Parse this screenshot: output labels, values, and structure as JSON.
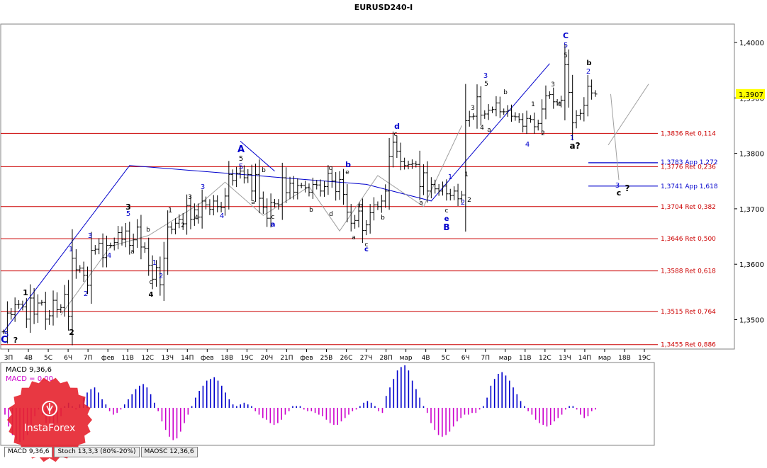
{
  "chart_data": {
    "type": "candlestick",
    "title": "EURUSD240-I",
    "y_range": [
      1.3438,
      1.4045
    ],
    "price_label": "1,3907",
    "y_ticks": [
      "1,4000",
      "1,3900",
      "1,3800",
      "1,3700",
      "1,3600",
      "1,3500"
    ],
    "x_ticks": [
      "3П",
      "4В",
      "5С",
      "6Ч",
      "7П",
      "фев",
      "11В",
      "12С",
      "13Ч",
      "14П",
      "фев",
      "18В",
      "19С",
      "20Ч",
      "21П",
      "фев",
      "25В",
      "26С",
      "27Ч",
      "28П",
      "мар",
      "4В",
      "5С",
      "6Ч",
      "7П",
      "мар",
      "11В",
      "12С",
      "13Ч",
      "14П",
      "мар",
      "18В",
      "19С"
    ],
    "fib_levels": [
      {
        "label": "1,3836 Ret 0,114",
        "value": 1.3836
      },
      {
        "label": "1,3776 Ret 0,236",
        "value": 1.3776
      },
      {
        "label": "1,3704 Ret 0,382",
        "value": 1.3704
      },
      {
        "label": "1,3646 Ret 0,500",
        "value": 1.3646
      },
      {
        "label": "1,3588 Ret 0,618",
        "value": 1.3588
      },
      {
        "label": "1,3515 Ret 0,764",
        "value": 1.3515
      },
      {
        "label": "1,3455 Ret 0,886",
        "value": 1.3455
      }
    ],
    "projections": [
      {
        "label": "1,3783 App 1,272",
        "value": 1.3783
      },
      {
        "label": "1,3741 App 1,618",
        "value": 1.3741
      }
    ],
    "candles_close": [
      1.3478,
      1.3512,
      1.3509,
      1.3527,
      1.3528,
      1.3523,
      1.3501,
      1.3539,
      1.351,
      1.353,
      1.3531,
      1.3501,
      1.3507,
      1.3535,
      1.3518,
      1.3522,
      1.3546,
      1.3506,
      1.3611,
      1.359,
      1.3593,
      1.358,
      1.3562,
      1.3625,
      1.3627,
      1.3638,
      1.3612,
      1.3634,
      1.3634,
      1.3639,
      1.3657,
      1.3645,
      1.366,
      1.3634,
      1.3644,
      1.3667,
      1.3631,
      1.3629,
      1.3598,
      1.3573,
      1.3594,
      1.3563,
      1.3611,
      1.3667,
      1.3663,
      1.3674,
      1.3681,
      1.3673,
      1.3706,
      1.3681,
      1.3698,
      1.3685,
      1.3714,
      1.3707,
      1.3699,
      1.3714,
      1.3704,
      1.3702,
      1.3723,
      1.3762,
      1.3751,
      1.3764,
      1.3768,
      1.3756,
      1.3762,
      1.3732,
      1.3762,
      1.3719,
      1.3703,
      1.3683,
      1.3711,
      1.3709,
      1.3707,
      1.3756,
      1.3729,
      1.3746,
      1.373,
      1.3742,
      1.3742,
      1.3738,
      1.373,
      1.3744,
      1.3743,
      1.3732,
      1.374,
      1.3764,
      1.375,
      1.3731,
      1.3753,
      1.3726,
      1.3694,
      1.3674,
      1.3679,
      1.3696,
      1.3661,
      1.3671,
      1.3693,
      1.3707,
      1.3704,
      1.3714,
      1.3732,
      1.3794,
      1.382,
      1.3804,
      1.3785,
      1.3778,
      1.378,
      1.3781,
      1.378,
      1.374,
      1.3765,
      1.3732,
      1.3744,
      1.3736,
      1.3732,
      1.3741,
      1.3727,
      1.3724,
      1.3732,
      1.3718,
      1.3725,
      1.3859,
      1.3866,
      1.3867,
      1.3902,
      1.3869,
      1.3871,
      1.3878,
      1.3879,
      1.3891,
      1.3875,
      1.3875,
      1.3878,
      1.3867,
      1.3866,
      1.3861,
      1.3849,
      1.3863,
      1.3861,
      1.3848,
      1.3854,
      1.388,
      1.3904,
      1.3906,
      1.3893,
      1.3891,
      1.3896,
      1.396,
      1.391,
      1.3855,
      1.3868,
      1.3872,
      1.3887,
      1.3921,
      1.3909,
      1.3907
    ],
    "wave_labels": [
      {
        "text": "C",
        "color": "#0000cc"
      },
      {
        "text": "5",
        "color": "#0000cc"
      },
      {
        "text": "?",
        "color": "#000000"
      },
      {
        "text": "1",
        "color": "#000000"
      },
      {
        "text": "2",
        "color": "#000000"
      },
      {
        "text": "1",
        "color": "#0000cc"
      },
      {
        "text": "2",
        "color": "#0000cc"
      },
      {
        "text": "3",
        "color": "#0000cc"
      },
      {
        "text": "4",
        "color": "#0000cc"
      },
      {
        "text": "5",
        "color": "#0000cc"
      },
      {
        "text": "3",
        "color": "#000000"
      },
      {
        "text": "a",
        "color": "#000000"
      },
      {
        "text": "b",
        "color": "#000000"
      },
      {
        "text": "c",
        "color": "#000000"
      },
      {
        "text": "4",
        "color": "#000000"
      },
      {
        "text": "1",
        "color": "#0000cc"
      },
      {
        "text": "2",
        "color": "#0000cc"
      },
      {
        "text": "1",
        "color": "#000000"
      },
      {
        "text": "2",
        "color": "#000000"
      },
      {
        "text": "3",
        "color": "#000000"
      },
      {
        "text": "4",
        "color": "#000000"
      },
      {
        "text": "3",
        "color": "#0000cc"
      },
      {
        "text": "4",
        "color": "#0000cc"
      },
      {
        "text": "5",
        "color": "#0000cc"
      },
      {
        "text": "A",
        "color": "#0000cc"
      },
      {
        "text": "5",
        "color": "#000000"
      },
      {
        "text": "a",
        "color": "#000000"
      },
      {
        "text": "b",
        "color": "#000000"
      },
      {
        "text": "c",
        "color": "#000000"
      },
      {
        "text": "a",
        "color": "#0000cc"
      },
      {
        "text": "b",
        "color": "#000000"
      },
      {
        "text": "c",
        "color": "#000000"
      },
      {
        "text": "e",
        "color": "#000000"
      },
      {
        "text": "d",
        "color": "#000000"
      },
      {
        "text": "b",
        "color": "#0000cc"
      },
      {
        "text": "a",
        "color": "#000000"
      },
      {
        "text": "b",
        "color": "#000000"
      },
      {
        "text": "c",
        "color": "#000000"
      },
      {
        "text": "c",
        "color": "#0000cc"
      },
      {
        "text": "d",
        "color": "#0000cc"
      },
      {
        "text": "c",
        "color": "#000000"
      },
      {
        "text": "b",
        "color": "#000000"
      },
      {
        "text": "a",
        "color": "#000000"
      },
      {
        "text": "c",
        "color": "#000000"
      },
      {
        "text": "e",
        "color": "#0000cc"
      },
      {
        "text": "B",
        "color": "#0000cc"
      },
      {
        "text": "1",
        "color": "#0000cc"
      },
      {
        "text": "2",
        "color": "#0000cc"
      },
      {
        "text": "1",
        "color": "#000000"
      },
      {
        "text": "2",
        "color": "#000000"
      },
      {
        "text": "3",
        "color": "#000000"
      },
      {
        "text": "4",
        "color": "#000000"
      },
      {
        "text": "5",
        "color": "#000000"
      },
      {
        "text": "a",
        "color": "#000000"
      },
      {
        "text": "b",
        "color": "#000000"
      },
      {
        "text": "3",
        "color": "#0000cc"
      },
      {
        "text": "1",
        "color": "#000000"
      },
      {
        "text": "2",
        "color": "#000000"
      },
      {
        "text": "4",
        "color": "#0000cc"
      },
      {
        "text": "3",
        "color": "#000000"
      },
      {
        "text": "4",
        "color": "#000000"
      },
      {
        "text": "5",
        "color": "#000000"
      },
      {
        "text": "C",
        "color": "#0000cc"
      },
      {
        "text": "5",
        "color": "#0000cc"
      },
      {
        "text": "1",
        "color": "#0000cc"
      },
      {
        "text": "b",
        "color": "#000000"
      },
      {
        "text": "2",
        "color": "#0000cc"
      },
      {
        "text": "a?",
        "color": "#000000"
      },
      {
        "text": "3",
        "color": "#0000cc"
      },
      {
        "text": "c",
        "color": "#000000"
      },
      {
        "text": "?",
        "color": "#000000"
      }
    ],
    "indicator": {
      "name": "MACD",
      "params": "MACD 9,36,6",
      "value_label": "MACD = 0,00",
      "value_color": "#cc00cc",
      "histogram": [
        -0.0004,
        -0.0011,
        -0.0016,
        -0.0019,
        -0.002,
        -0.0019,
        -0.0016,
        -0.0011,
        -0.0005,
        -0.0001,
        -0.0004,
        -0.0009,
        -0.0012,
        -0.0012,
        -0.0009,
        -0.0005,
        0.0001,
        0.0003,
        0.0001,
        -0.0001,
        0.0002,
        0.0006,
        0.0009,
        0.0011,
        0.0012,
        0.0009,
        0.0005,
        0.0002,
        -0.0002,
        -0.0004,
        -0.0003,
        -0.0001,
        0.0002,
        0.0005,
        0.0008,
        0.0011,
        0.0013,
        0.0014,
        0.0012,
        0.0008,
        0.0003,
        -0.0002,
        -0.0008,
        -0.0013,
        -0.0017,
        -0.0019,
        -0.0018,
        -0.0014,
        -0.0009,
        -0.0004,
        0.0001,
        0.0006,
        0.001,
        0.0013,
        0.0016,
        0.0017,
        0.0018,
        0.0016,
        0.0013,
        0.0009,
        0.0005,
        0.0002,
        0.0001,
        0.0002,
        0.0003,
        0.0002,
        0.0001,
        -0.0002,
        -0.0004,
        -0.0006,
        -0.0007,
        -0.0009,
        -0.001,
        -0.0009,
        -0.0007,
        -0.0004,
        -0.0002,
        0.0001,
        0.0001,
        0.0001,
        -0.0001,
        -0.0002,
        -0.0002,
        -0.0003,
        -0.0004,
        -0.0005,
        -0.0007,
        -0.0009,
        -0.001,
        -0.001,
        -0.0008,
        -0.0006,
        -0.0004,
        -0.0002,
        -0.0001,
        0.0001,
        0.0003,
        0.0004,
        0.0003,
        0.0001,
        -0.0002,
        -0.0003,
        0.0007,
        0.0012,
        0.0017,
        0.0022,
        0.0024,
        0.0025,
        0.0022,
        0.0016,
        0.0011,
        0.0006,
        0.0001,
        -0.0003,
        -0.0009,
        -0.0013,
        -0.0016,
        -0.0017,
        -0.0016,
        -0.0014,
        -0.0011,
        -0.0008,
        -0.0006,
        -0.0004,
        -0.0004,
        -0.0003,
        -0.0003,
        -0.0001,
        0.0001,
        0.0006,
        0.0013,
        0.0017,
        0.002,
        0.0021,
        0.0019,
        0.0016,
        0.0012,
        0.0008,
        0.0004,
        0.0001,
        -0.0002,
        -0.0004,
        -0.0007,
        -0.0009,
        -0.001,
        -0.0011,
        -0.001,
        -0.0008,
        -0.0006,
        -0.0004,
        -0.0001,
        0.0001,
        0.0001,
        -0.0001,
        -0.0004,
        -0.0006,
        -0.0005,
        -0.0002,
        -0.0001
      ]
    }
  },
  "tabs": [
    "MACD 9,36,6",
    "Stoch 13,3,3 (80%-20%)",
    "MAOSC 12,36,6"
  ],
  "logo": {
    "text": "InstaForex"
  },
  "colors": {
    "fib_line": "#cc0000",
    "fib_text": "#cc0000",
    "projection_line": "#0000cc",
    "projection_text": "#0000cc",
    "wave_blue": "#0000cc",
    "trend_gray": "#a0a0a0",
    "price_badge": "#ffff00",
    "macd_pos": "#0000cc",
    "macd_neg": "#cc00cc",
    "logo_red": "#e5222d"
  }
}
